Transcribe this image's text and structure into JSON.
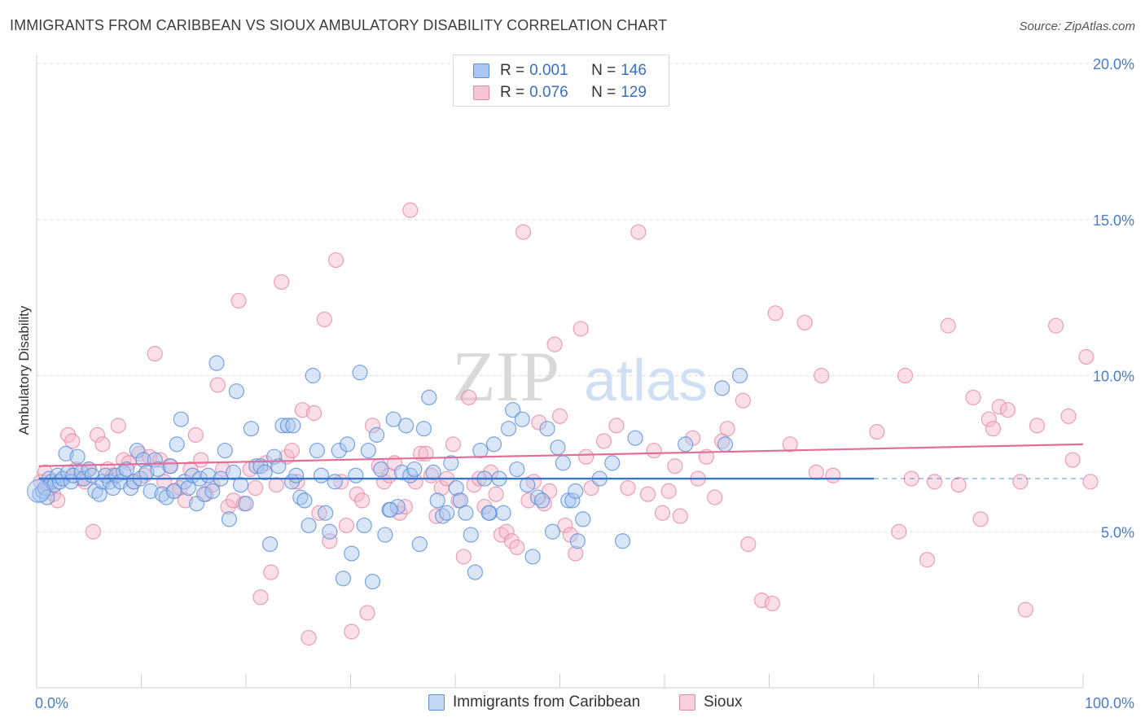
{
  "header": {
    "title": "IMMIGRANTS FROM CARIBBEAN VS SIOUX AMBULATORY DISABILITY CORRELATION CHART",
    "source": "Source: ZipAtlas.com"
  },
  "watermark": {
    "zip": "ZIP",
    "atlas": "atlas"
  },
  "colors": {
    "blue_fill": "#a9c7f0",
    "blue_stroke": "#5b8ed9",
    "blue_line": "#3a74cf",
    "pink_fill": "#f6b8cb",
    "pink_stroke": "#e58aa8",
    "pink_line": "#e26f98",
    "tick_text": "#4a7cc9",
    "grid": "#dcdcdc"
  },
  "legend": {
    "rows": [
      {
        "r_label": "R =",
        "r_value": "0.001",
        "n_label": "N =",
        "n_value": "146"
      },
      {
        "r_label": "R =",
        "r_value": "0.076",
        "n_label": "N =",
        "n_value": "129"
      }
    ]
  },
  "bottom_legend": [
    {
      "label": "Immigrants from Caribbean"
    },
    {
      "label": "Sioux"
    }
  ],
  "chart_data": {
    "type": "scatter",
    "title": "IMMIGRANTS FROM CARIBBEAN VS SIOUX AMBULATORY DISABILITY CORRELATION CHART",
    "xlabel": "",
    "ylabel": "Ambulatory Disability",
    "xlim": [
      0,
      100
    ],
    "ylim": [
      0,
      21
    ],
    "x_ticks_labeled": [
      "0.0%",
      "100.0%"
    ],
    "y_ticks": [
      5,
      10,
      15,
      20
    ],
    "y_tick_labels": [
      "5.0%",
      "10.0%",
      "15.0%",
      "20.0%"
    ],
    "grid": "horizontal dashed",
    "legend_position": "top-center",
    "series": [
      {
        "name": "Immigrants from Caribbean",
        "r": 0.001,
        "n": 146,
        "trend": {
          "x0": 0.2,
          "y0": 6.7,
          "x1": 80,
          "y1": 6.7,
          "dashed_to": 100
        },
        "points": [
          [
            0.3,
            6.2
          ],
          [
            0.6,
            6.3
          ],
          [
            0.8,
            6.4
          ],
          [
            1.0,
            6.1
          ],
          [
            1.2,
            6.7
          ],
          [
            1.4,
            6.6
          ],
          [
            1.7,
            6.5
          ],
          [
            2.0,
            6.8
          ],
          [
            2.2,
            6.6
          ],
          [
            2.5,
            6.7
          ],
          [
            2.8,
            7.5
          ],
          [
            3.0,
            6.9
          ],
          [
            3.3,
            6.6
          ],
          [
            3.5,
            6.8
          ],
          [
            3.9,
            7.4
          ],
          [
            4.3,
            6.9
          ],
          [
            4.5,
            6.7
          ],
          [
            5.0,
            7.0
          ],
          [
            5.3,
            6.8
          ],
          [
            5.6,
            6.3
          ],
          [
            6.0,
            6.2
          ],
          [
            6.3,
            6.6
          ],
          [
            6.6,
            6.8
          ],
          [
            7.0,
            6.6
          ],
          [
            7.3,
            6.4
          ],
          [
            7.6,
            6.8
          ],
          [
            8.0,
            6.6
          ],
          [
            8.3,
            6.9
          ],
          [
            8.6,
            7.0
          ],
          [
            9.0,
            6.4
          ],
          [
            9.3,
            6.6
          ],
          [
            9.6,
            7.6
          ],
          [
            9.9,
            6.7
          ],
          [
            10.2,
            7.3
          ],
          [
            10.5,
            6.9
          ],
          [
            10.9,
            6.3
          ],
          [
            11.3,
            7.3
          ],
          [
            11.6,
            7.0
          ],
          [
            12.0,
            6.2
          ],
          [
            12.4,
            6.1
          ],
          [
            12.8,
            7.1
          ],
          [
            13.1,
            6.3
          ],
          [
            13.4,
            7.8
          ],
          [
            13.8,
            8.6
          ],
          [
            14.1,
            6.6
          ],
          [
            14.5,
            6.4
          ],
          [
            14.9,
            6.8
          ],
          [
            15.3,
            5.9
          ],
          [
            15.6,
            6.7
          ],
          [
            16.0,
            6.2
          ],
          [
            16.4,
            6.8
          ],
          [
            16.8,
            6.3
          ],
          [
            17.2,
            10.4
          ],
          [
            17.6,
            6.7
          ],
          [
            18.0,
            7.6
          ],
          [
            18.4,
            5.4
          ],
          [
            18.8,
            6.9
          ],
          [
            19.1,
            9.5
          ],
          [
            19.5,
            6.5
          ],
          [
            20.0,
            5.9
          ],
          [
            20.5,
            8.3
          ],
          [
            21.0,
            7.1
          ],
          [
            21.4,
            7.1
          ],
          [
            21.8,
            6.9
          ],
          [
            22.3,
            4.6
          ],
          [
            22.7,
            7.4
          ],
          [
            23.1,
            7.1
          ],
          [
            23.5,
            8.4
          ],
          [
            24.0,
            8.4
          ],
          [
            24.4,
            6.6
          ],
          [
            24.8,
            6.8
          ],
          [
            25.2,
            6.1
          ],
          [
            25.6,
            6.0
          ],
          [
            26.0,
            5.2
          ],
          [
            26.4,
            10.0
          ],
          [
            26.8,
            7.6
          ],
          [
            27.2,
            6.8
          ],
          [
            27.6,
            5.6
          ],
          [
            28.0,
            5.0
          ],
          [
            28.5,
            6.6
          ],
          [
            28.9,
            7.6
          ],
          [
            29.3,
            3.5
          ],
          [
            29.7,
            7.8
          ],
          [
            30.1,
            4.3
          ],
          [
            30.5,
            6.8
          ],
          [
            30.9,
            10.1
          ],
          [
            31.3,
            5.2
          ],
          [
            31.7,
            7.6
          ],
          [
            32.1,
            3.4
          ],
          [
            32.5,
            8.1
          ],
          [
            32.9,
            7.0
          ],
          [
            33.3,
            4.9
          ],
          [
            33.7,
            5.7
          ],
          [
            34.1,
            8.6
          ],
          [
            34.5,
            5.8
          ],
          [
            34.9,
            6.9
          ],
          [
            35.3,
            8.4
          ],
          [
            35.7,
            6.8
          ],
          [
            36.1,
            7.0
          ],
          [
            36.6,
            4.6
          ],
          [
            37.0,
            8.3
          ],
          [
            37.5,
            9.3
          ],
          [
            37.9,
            6.9
          ],
          [
            38.3,
            6.0
          ],
          [
            38.8,
            5.5
          ],
          [
            39.2,
            5.6
          ],
          [
            39.6,
            7.2
          ],
          [
            40.1,
            6.4
          ],
          [
            40.5,
            6.0
          ],
          [
            41.0,
            5.6
          ],
          [
            41.5,
            4.9
          ],
          [
            41.9,
            3.7
          ],
          [
            42.4,
            7.6
          ],
          [
            42.8,
            6.7
          ],
          [
            43.3,
            5.6
          ],
          [
            43.7,
            7.8
          ],
          [
            44.2,
            6.7
          ],
          [
            44.6,
            5.6
          ],
          [
            45.1,
            8.3
          ],
          [
            45.5,
            8.9
          ],
          [
            45.9,
            7.0
          ],
          [
            46.4,
            8.6
          ],
          [
            46.9,
            6.5
          ],
          [
            47.4,
            4.2
          ],
          [
            47.9,
            6.1
          ],
          [
            48.3,
            6.0
          ],
          [
            48.8,
            8.3
          ],
          [
            49.3,
            5.0
          ],
          [
            49.8,
            7.7
          ],
          [
            50.3,
            7.2
          ],
          [
            50.8,
            6.0
          ],
          [
            51.2,
            6.0
          ],
          [
            51.7,
            4.7
          ],
          [
            52.2,
            5.4
          ],
          [
            53.8,
            6.7
          ],
          [
            55.0,
            7.2
          ],
          [
            57.2,
            8.0
          ],
          [
            62.0,
            7.8
          ],
          [
            65.5,
            9.6
          ],
          [
            65.8,
            7.8
          ],
          [
            67.2,
            10.0
          ],
          [
            56.0,
            4.7
          ],
          [
            51.5,
            6.3
          ],
          [
            24.5,
            8.4
          ],
          [
            33.8,
            5.7
          ],
          [
            43.2,
            5.6
          ]
        ]
      },
      {
        "name": "Sioux",
        "r": 0.076,
        "n": 129,
        "trend": {
          "x0": 0.2,
          "y0": 7.1,
          "x1": 100,
          "y1": 7.8
        },
        "points": [
          [
            0.4,
            6.6
          ],
          [
            0.8,
            6.9
          ],
          [
            1.2,
            6.4
          ],
          [
            1.6,
            6.2
          ],
          [
            2.0,
            6.0
          ],
          [
            2.5,
            6.7
          ],
          [
            3.0,
            8.1
          ],
          [
            3.4,
            7.9
          ],
          [
            3.8,
            7.0
          ],
          [
            4.2,
            6.7
          ],
          [
            4.6,
            6.6
          ],
          [
            5.0,
            7.0
          ],
          [
            5.4,
            5.0
          ],
          [
            5.8,
            8.1
          ],
          [
            6.3,
            7.8
          ],
          [
            6.8,
            7.0
          ],
          [
            7.3,
            6.8
          ],
          [
            7.8,
            8.4
          ],
          [
            8.3,
            7.3
          ],
          [
            8.8,
            7.2
          ],
          [
            9.3,
            6.6
          ],
          [
            9.8,
            7.5
          ],
          [
            10.3,
            6.8
          ],
          [
            10.8,
            7.4
          ],
          [
            11.3,
            10.7
          ],
          [
            11.8,
            7.3
          ],
          [
            12.2,
            6.6
          ],
          [
            12.7,
            7.1
          ],
          [
            13.2,
            6.3
          ],
          [
            13.7,
            6.4
          ],
          [
            14.2,
            6.0
          ],
          [
            14.7,
            7.0
          ],
          [
            15.2,
            8.1
          ],
          [
            15.7,
            7.3
          ],
          [
            16.2,
            6.2
          ],
          [
            16.8,
            6.5
          ],
          [
            17.3,
            9.7
          ],
          [
            17.8,
            7.0
          ],
          [
            18.3,
            5.8
          ],
          [
            18.8,
            6.0
          ],
          [
            19.3,
            12.4
          ],
          [
            19.8,
            5.9
          ],
          [
            20.4,
            7.0
          ],
          [
            20.9,
            6.4
          ],
          [
            21.4,
            2.9
          ],
          [
            21.9,
            7.2
          ],
          [
            22.4,
            3.7
          ],
          [
            22.9,
            6.5
          ],
          [
            23.4,
            13.0
          ],
          [
            23.9,
            7.4
          ],
          [
            24.4,
            7.6
          ],
          [
            24.9,
            6.6
          ],
          [
            25.4,
            8.9
          ],
          [
            26.0,
            1.6
          ],
          [
            26.5,
            8.8
          ],
          [
            27.0,
            5.6
          ],
          [
            27.5,
            11.8
          ],
          [
            28.0,
            4.7
          ],
          [
            28.6,
            13.7
          ],
          [
            29.1,
            6.6
          ],
          [
            29.6,
            5.2
          ],
          [
            30.1,
            1.8
          ],
          [
            30.6,
            6.2
          ],
          [
            31.1,
            6.0
          ],
          [
            31.6,
            2.4
          ],
          [
            32.1,
            8.4
          ],
          [
            32.7,
            7.1
          ],
          [
            33.2,
            6.6
          ],
          [
            33.7,
            6.8
          ],
          [
            34.2,
            7.2
          ],
          [
            34.7,
            5.6
          ],
          [
            35.2,
            5.8
          ],
          [
            35.7,
            15.3
          ],
          [
            36.2,
            6.6
          ],
          [
            36.7,
            7.5
          ],
          [
            37.2,
            7.5
          ],
          [
            37.7,
            6.8
          ],
          [
            38.2,
            5.5
          ],
          [
            38.7,
            6.4
          ],
          [
            39.2,
            6.7
          ],
          [
            39.8,
            7.8
          ],
          [
            40.3,
            6.0
          ],
          [
            40.8,
            4.2
          ],
          [
            41.3,
            9.3
          ],
          [
            41.8,
            6.5
          ],
          [
            42.3,
            6.7
          ],
          [
            42.8,
            5.8
          ],
          [
            43.4,
            6.9
          ],
          [
            43.9,
            6.2
          ],
          [
            44.4,
            4.9
          ],
          [
            44.9,
            5.0
          ],
          [
            45.4,
            4.7
          ],
          [
            45.9,
            4.5
          ],
          [
            46.5,
            14.6
          ],
          [
            47.0,
            6.0
          ],
          [
            47.5,
            6.6
          ],
          [
            48.0,
            8.5
          ],
          [
            48.5,
            5.9
          ],
          [
            49.0,
            6.3
          ],
          [
            49.5,
            11.0
          ],
          [
            50.0,
            8.7
          ],
          [
            50.5,
            5.2
          ],
          [
            51.0,
            4.9
          ],
          [
            51.5,
            4.3
          ],
          [
            52.0,
            11.5
          ],
          [
            52.5,
            7.4
          ],
          [
            53.0,
            6.4
          ],
          [
            54.2,
            7.9
          ],
          [
            55.4,
            8.4
          ],
          [
            56.5,
            6.4
          ],
          [
            57.5,
            14.6
          ],
          [
            58.4,
            6.2
          ],
          [
            59.0,
            7.6
          ],
          [
            59.8,
            5.6
          ],
          [
            60.4,
            6.3
          ],
          [
            61.0,
            7.1
          ],
          [
            61.5,
            5.5
          ],
          [
            62.7,
            8.0
          ],
          [
            63.2,
            6.7
          ],
          [
            64.0,
            7.4
          ],
          [
            64.8,
            6.1
          ],
          [
            65.5,
            7.9
          ],
          [
            66.0,
            8.3
          ],
          [
            67.5,
            9.2
          ],
          [
            68.0,
            4.6
          ],
          [
            69.3,
            2.8
          ],
          [
            70.3,
            2.7
          ],
          [
            70.6,
            12.0
          ],
          [
            72.0,
            7.8
          ],
          [
            73.4,
            11.7
          ],
          [
            74.5,
            6.9
          ],
          [
            75.0,
            10.0
          ],
          [
            76.1,
            6.8
          ],
          [
            80.3,
            8.2
          ],
          [
            82.4,
            5.0
          ],
          [
            83.0,
            10.0
          ],
          [
            83.6,
            6.7
          ],
          [
            85.1,
            4.1
          ],
          [
            85.8,
            6.6
          ],
          [
            87.1,
            11.6
          ],
          [
            88.1,
            6.5
          ],
          [
            89.5,
            9.3
          ],
          [
            90.2,
            5.4
          ],
          [
            91.0,
            8.6
          ],
          [
            91.4,
            8.3
          ],
          [
            92.0,
            9.0
          ],
          [
            92.8,
            8.9
          ],
          [
            94.0,
            6.6
          ],
          [
            94.5,
            2.5
          ],
          [
            95.6,
            8.4
          ],
          [
            97.4,
            11.6
          ],
          [
            98.6,
            8.7
          ],
          [
            99.0,
            7.3
          ],
          [
            100.3,
            10.6
          ],
          [
            100.7,
            6.6
          ]
        ]
      }
    ]
  }
}
